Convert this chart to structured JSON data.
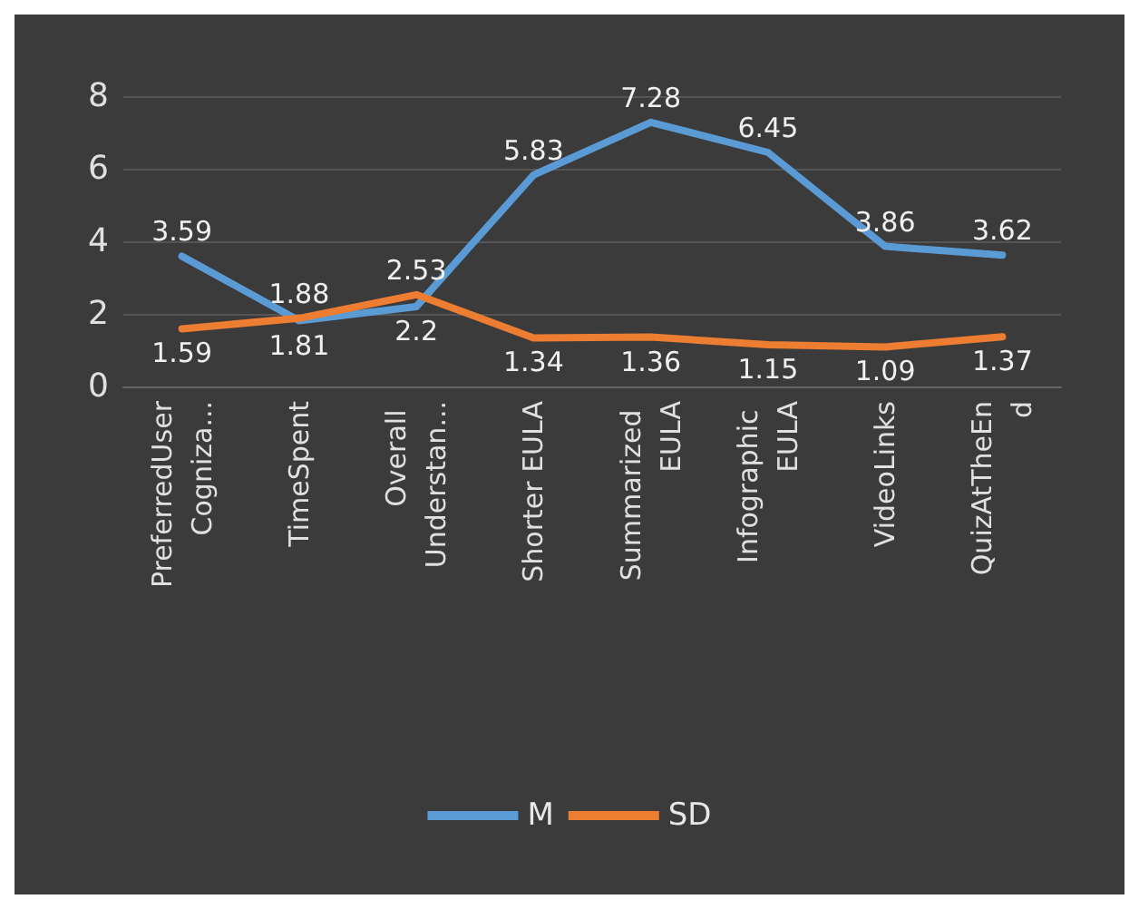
{
  "chart_data": {
    "type": "line",
    "categories": [
      "PreferredUserCogniza...",
      "TimeSpent",
      "Overall Understan...",
      "Shorter EULA",
      "Summarized EULA",
      "Infographic EULA",
      "VideoLinks",
      "QuizAtTheEnd"
    ],
    "series": [
      {
        "name": "M",
        "color": "#5b9bd5",
        "values": [
          3.59,
          1.81,
          2.2,
          5.83,
          7.28,
          6.45,
          3.86,
          3.62
        ]
      },
      {
        "name": "SD",
        "color": "#ed7d31",
        "values": [
          1.59,
          1.88,
          2.53,
          1.34,
          1.36,
          1.15,
          1.09,
          1.37
        ]
      }
    ],
    "ylim": [
      0,
      8
    ],
    "yticks": [
      0,
      2,
      4,
      6,
      8
    ],
    "grid": "y",
    "legend": "bottom",
    "data_labels": true,
    "marker": "none",
    "line_style": "solid"
  }
}
